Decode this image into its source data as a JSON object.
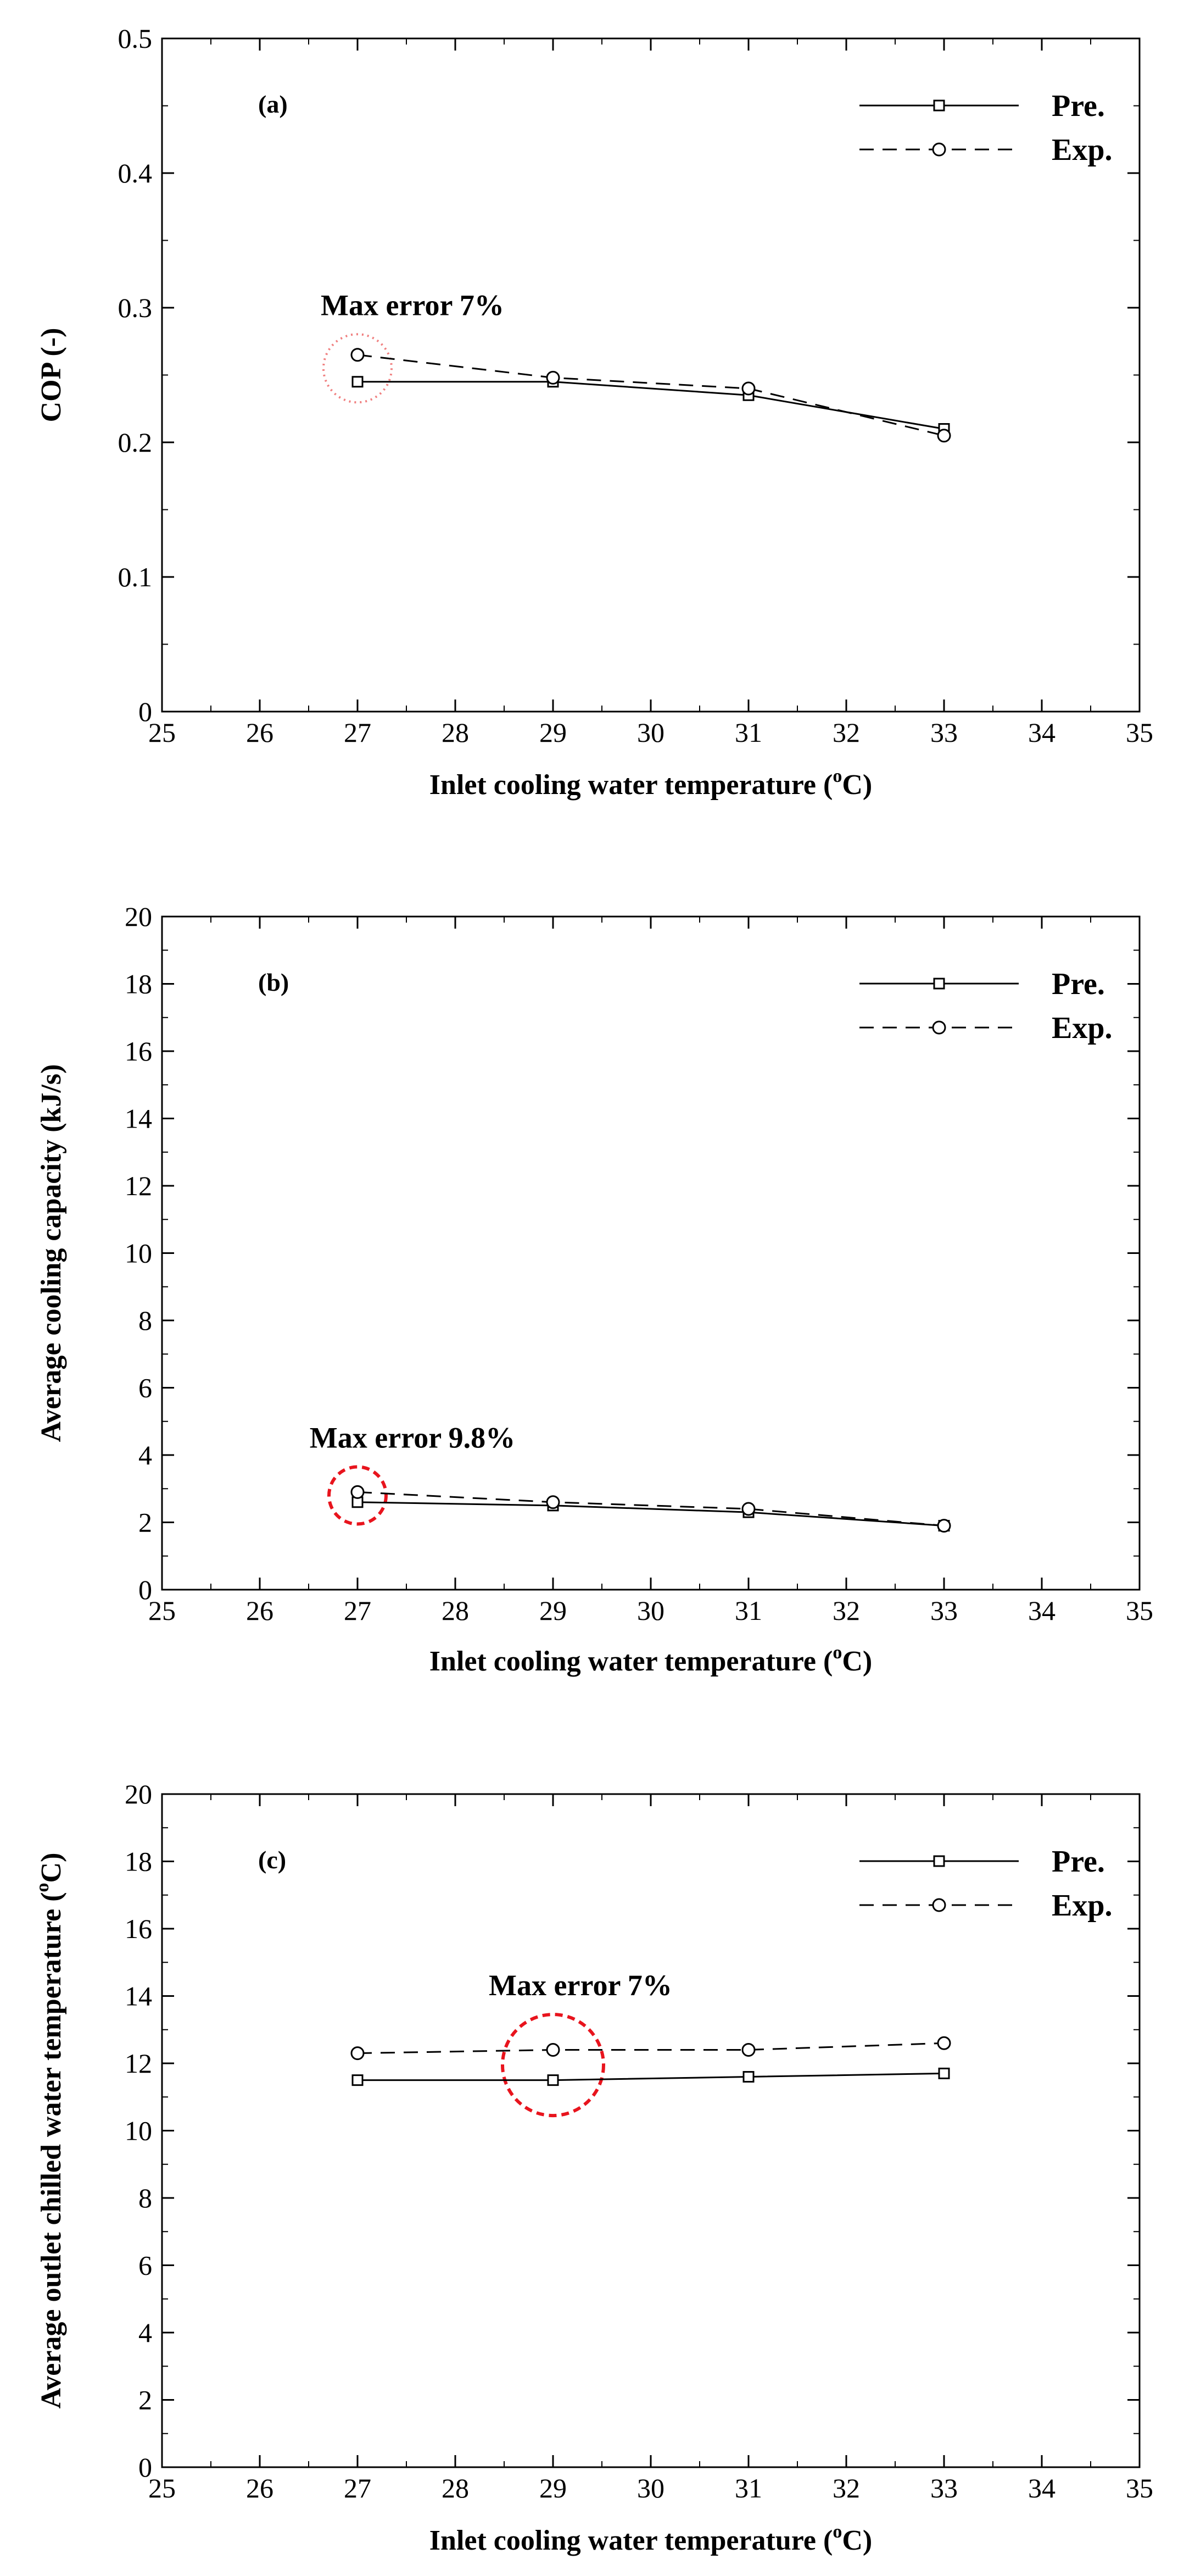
{
  "chart_data": [
    {
      "type": "line",
      "panel_label": "(a)",
      "title": "",
      "xlabel": "Inlet cooling water temperature (",
      "xlabel_sup": "o",
      "xlabel_unit": "C)",
      "ylabel": "COP (-)",
      "ylabel_sup": "",
      "ylabel_unit": "",
      "xlim": [
        25,
        35
      ],
      "ylim": [
        0,
        0.5
      ],
      "xticks": [
        "25",
        "26",
        "27",
        "28",
        "29",
        "30",
        "31",
        "32",
        "33",
        "34",
        "35"
      ],
      "yticks": [
        "0",
        "0.1",
        "0.2",
        "0.3",
        "0.4",
        "0.5"
      ],
      "x": [
        27,
        29,
        31,
        33
      ],
      "series": [
        {
          "name": "Pre.",
          "style": "solid",
          "marker": "square",
          "values": [
            0.245,
            0.245,
            0.235,
            0.21
          ]
        },
        {
          "name": "Exp.",
          "style": "dashed",
          "marker": "circle",
          "values": [
            0.265,
            0.248,
            0.24,
            0.205
          ]
        }
      ],
      "legend_position": "top-right",
      "annotation": {
        "text": "Max error 7%",
        "x": 27,
        "y": 0.255,
        "circle_color": "#f08080",
        "circle_style": "dotted"
      }
    },
    {
      "type": "line",
      "panel_label": "(b)",
      "title": "",
      "xlabel": "Inlet cooling water temperature (",
      "xlabel_sup": "o",
      "xlabel_unit": "C)",
      "ylabel": "Average cooling capacity (kJ/s)",
      "ylabel_sup": "",
      "ylabel_unit": "",
      "xlim": [
        25,
        35
      ],
      "ylim": [
        0,
        20
      ],
      "xticks": [
        "25",
        "26",
        "27",
        "28",
        "29",
        "30",
        "31",
        "32",
        "33",
        "34",
        "35"
      ],
      "yticks": [
        "0",
        "2",
        "4",
        "6",
        "8",
        "10",
        "12",
        "14",
        "16",
        "18",
        "20"
      ],
      "x": [
        27,
        29,
        31,
        33
      ],
      "series": [
        {
          "name": "Pre.",
          "style": "solid",
          "marker": "square",
          "values": [
            2.6,
            2.5,
            2.3,
            1.9
          ]
        },
        {
          "name": "Exp.",
          "style": "dashed",
          "marker": "circle",
          "values": [
            2.9,
            2.6,
            2.4,
            1.9
          ]
        }
      ],
      "legend_position": "top-right",
      "annotation": {
        "text": "Max error 9.8%",
        "x": 27,
        "y": 2.8,
        "circle_color": "#e8141d",
        "circle_style": "dashed"
      }
    },
    {
      "type": "line",
      "panel_label": "(c)",
      "title": "",
      "xlabel": "Inlet cooling water temperature (",
      "xlabel_sup": "o",
      "xlabel_unit": "C)",
      "ylabel": "Average outlet chilled water temperature (",
      "ylabel_sup": "o",
      "ylabel_unit": "C)",
      "xlim": [
        25,
        35
      ],
      "ylim": [
        0,
        20
      ],
      "xticks": [
        "25",
        "26",
        "27",
        "28",
        "29",
        "30",
        "31",
        "32",
        "33",
        "34",
        "35"
      ],
      "yticks": [
        "0",
        "2",
        "4",
        "6",
        "8",
        "10",
        "12",
        "14",
        "16",
        "18",
        "20"
      ],
      "x": [
        27,
        29,
        31,
        33
      ],
      "series": [
        {
          "name": "Pre.",
          "style": "solid",
          "marker": "square",
          "values": [
            11.5,
            11.5,
            11.6,
            11.7
          ]
        },
        {
          "name": "Exp.",
          "style": "dashed",
          "marker": "circle",
          "values": [
            12.3,
            12.4,
            12.4,
            12.6
          ]
        }
      ],
      "legend_position": "top-right",
      "annotation": {
        "text": "Max error 7%",
        "x": 29,
        "y": 11.95,
        "circle_color": "#e8141d",
        "circle_style": "dashed"
      }
    }
  ]
}
